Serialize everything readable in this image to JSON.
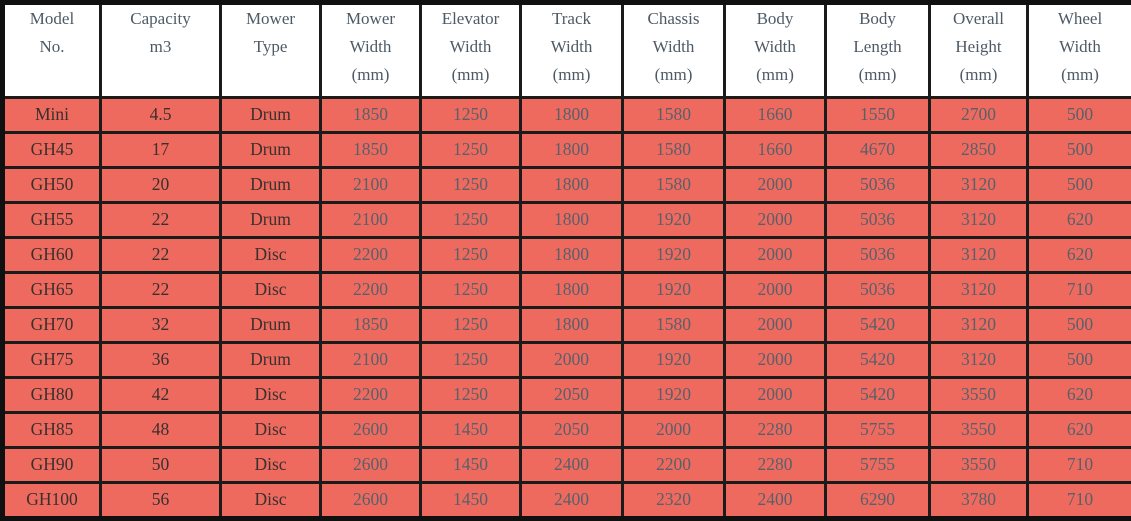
{
  "table": {
    "name": "mower-specifications-table",
    "columns": [
      {
        "id": "model-no",
        "lines": [
          "Model",
          "No."
        ]
      },
      {
        "id": "capacity",
        "lines": [
          "Capacity",
          "m3"
        ]
      },
      {
        "id": "mower-type",
        "lines": [
          "Mower",
          "Type"
        ]
      },
      {
        "id": "mower-width",
        "lines": [
          "Mower",
          "Width",
          "(mm)"
        ]
      },
      {
        "id": "elevator-width",
        "lines": [
          "Elevator",
          "Width",
          "(mm)"
        ]
      },
      {
        "id": "track-width",
        "lines": [
          "Track",
          "Width",
          "(mm)"
        ]
      },
      {
        "id": "chassis-width",
        "lines": [
          "Chassis",
          "Width",
          "(mm)"
        ]
      },
      {
        "id": "body-width",
        "lines": [
          "Body",
          "Width",
          "(mm)"
        ]
      },
      {
        "id": "body-length",
        "lines": [
          "Body",
          "Length",
          "(mm)"
        ]
      },
      {
        "id": "overall-height",
        "lines": [
          "Overall",
          "Height",
          "(mm)"
        ]
      },
      {
        "id": "wheel-width",
        "lines": [
          "Wheel",
          "Width",
          "(mm)"
        ]
      }
    ],
    "rows": [
      [
        "Mini",
        "4.5",
        "Drum",
        "1850",
        "1250",
        "1800",
        "1580",
        "1660",
        "1550",
        "2700",
        "500"
      ],
      [
        "GH45",
        "17",
        "Drum",
        "1850",
        "1250",
        "1800",
        "1580",
        "1660",
        "4670",
        "2850",
        "500"
      ],
      [
        "GH50",
        "20",
        "Drum",
        "2100",
        "1250",
        "1800",
        "1580",
        "2000",
        "5036",
        "3120",
        "500"
      ],
      [
        "GH55",
        "22",
        "Drum",
        "2100",
        "1250",
        "1800",
        "1920",
        "2000",
        "5036",
        "3120",
        "620"
      ],
      [
        "GH60",
        "22",
        "Disc",
        "2200",
        "1250",
        "1800",
        "1920",
        "2000",
        "5036",
        "3120",
        "620"
      ],
      [
        "GH65",
        "22",
        "Disc",
        "2200",
        "1250",
        "1800",
        "1920",
        "2000",
        "5036",
        "3120",
        "710"
      ],
      [
        "GH70",
        "32",
        "Drum",
        "1850",
        "1250",
        "1800",
        "1580",
        "2000",
        "5420",
        "3120",
        "500"
      ],
      [
        "GH75",
        "36",
        "Drum",
        "2100",
        "1250",
        "2000",
        "1920",
        "2000",
        "5420",
        "3120",
        "500"
      ],
      [
        "GH80",
        "42",
        "Disc",
        "2200",
        "1250",
        "2050",
        "1920",
        "2000",
        "5420",
        "3550",
        "620"
      ],
      [
        "GH85",
        "48",
        "Disc",
        "2600",
        "1450",
        "2050",
        "2000",
        "2280",
        "5755",
        "3550",
        "620"
      ],
      [
        "GH90",
        "50",
        "Disc",
        "2600",
        "1450",
        "2400",
        "2200",
        "2280",
        "5755",
        "3550",
        "710"
      ],
      [
        "GH100",
        "56",
        "Disc",
        "2600",
        "1450",
        "2400",
        "2320",
        "2400",
        "6290",
        "3780",
        "710"
      ]
    ],
    "colors": {
      "row_background": "#ee6a5f",
      "header_background": "#ffffff",
      "header_text": "#4d5a66",
      "label_text": "#39302e",
      "number_text": "#59606a",
      "border": "#1b1b1b"
    }
  }
}
